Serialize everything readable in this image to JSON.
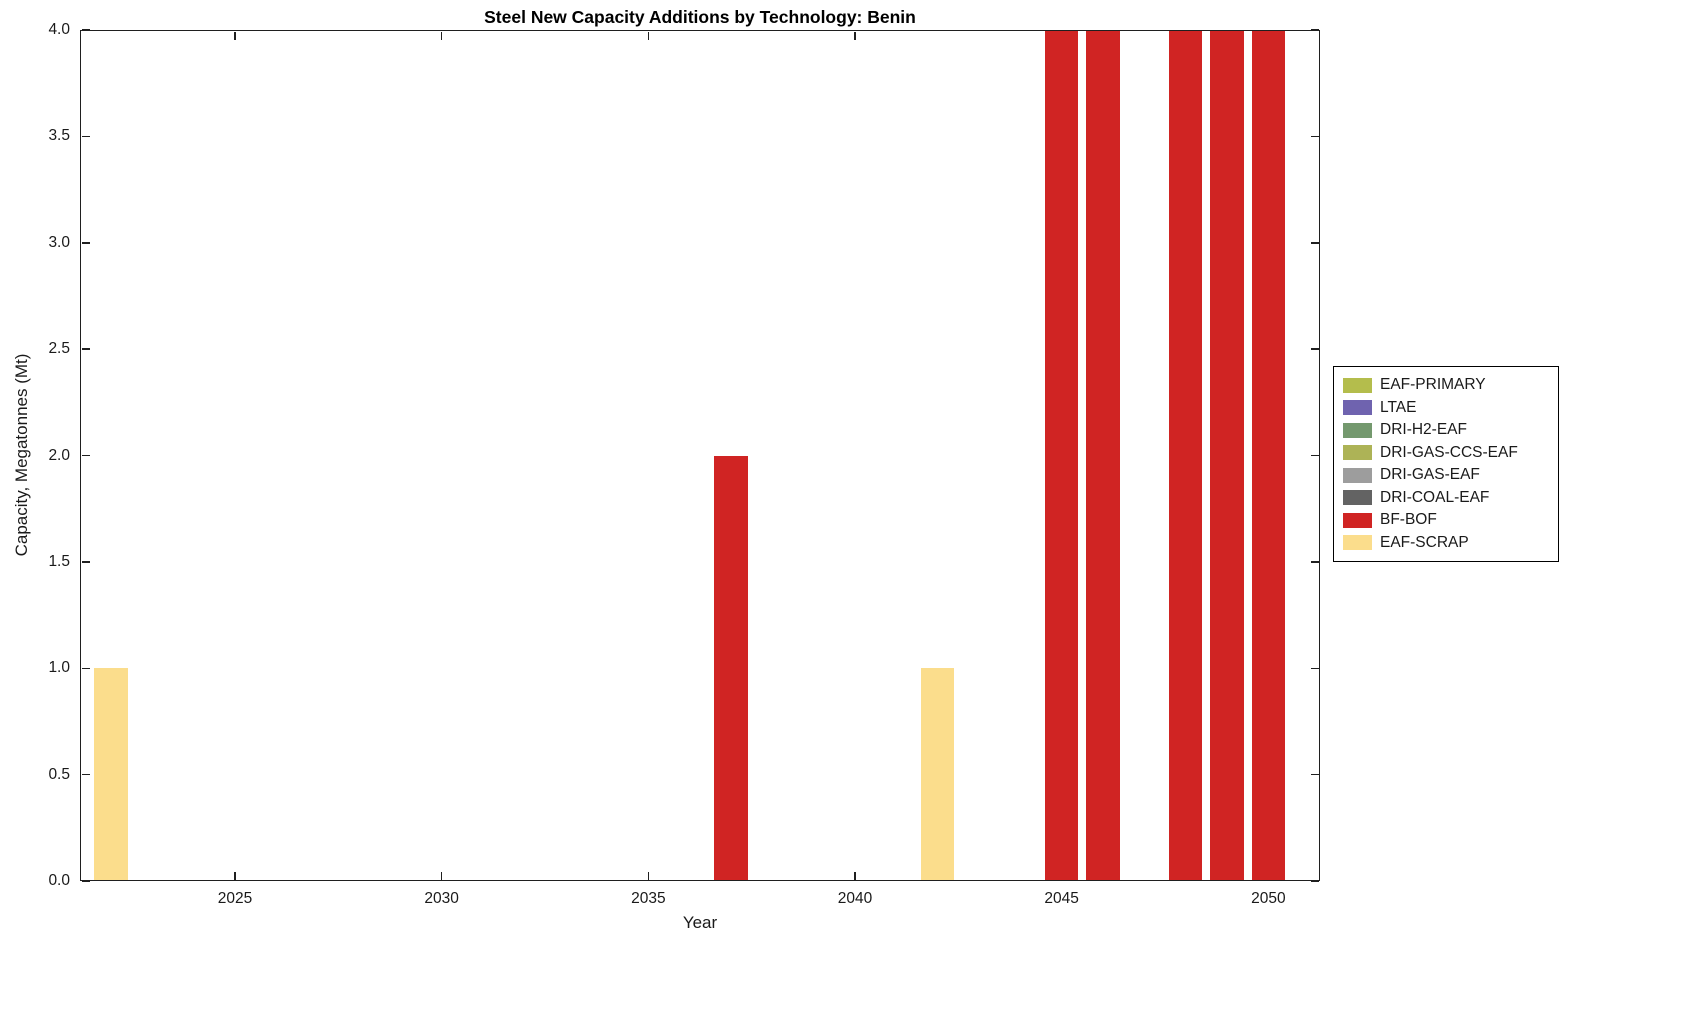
{
  "page": {
    "background": "#ffffff",
    "axis_color": "#1f1f1f"
  },
  "chart_data": {
    "type": "bar",
    "title": "Steel New Capacity Additions by Technology: Benin",
    "xlabel": "Year",
    "ylabel": "Capacity, Megatonnes (Mt)",
    "xlim": [
      2021.25,
      2051.25
    ],
    "ylim": [
      0,
      4
    ],
    "xticks": [
      2025,
      2030,
      2035,
      2040,
      2045,
      2050
    ],
    "yticks": [
      0,
      0.5,
      1,
      1.5,
      2,
      2.5,
      3,
      3.5,
      4
    ],
    "ytick_decimals": 1,
    "grid": false,
    "legend_position": "right-outside",
    "bar_width_years": 0.8,
    "series_colors": {
      "EAF-PRIMARY": "#b4bd4c",
      "LTAE": "#6f63af",
      "DRI-H2-EAF": "#74996e",
      "DRI-GAS-CCS-EAF": "#adb356",
      "DRI-GAS-EAF": "#9d9d9d",
      "DRI-COAL-EAF": "#636363",
      "BF-BOF": "#d02423",
      "EAF-SCRAP": "#fbdd8c"
    },
    "legend_entries": [
      "EAF-PRIMARY",
      "LTAE",
      "DRI-H2-EAF",
      "DRI-GAS-CCS-EAF",
      "DRI-GAS-EAF",
      "DRI-COAL-EAF",
      "BF-BOF",
      "EAF-SCRAP"
    ],
    "bars": [
      {
        "year": 2022,
        "series": "EAF-SCRAP",
        "value": 1.0
      },
      {
        "year": 2037,
        "series": "BF-BOF",
        "value": 2.0
      },
      {
        "year": 2042,
        "series": "EAF-SCRAP",
        "value": 1.0
      },
      {
        "year": 2045,
        "series": "BF-BOF",
        "value": 4.0
      },
      {
        "year": 2046,
        "series": "BF-BOF",
        "value": 4.0
      },
      {
        "year": 2048,
        "series": "BF-BOF",
        "value": 4.0
      },
      {
        "year": 2049,
        "series": "BF-BOF",
        "value": 4.0
      },
      {
        "year": 2050,
        "series": "BF-BOF",
        "value": 4.0
      }
    ]
  }
}
